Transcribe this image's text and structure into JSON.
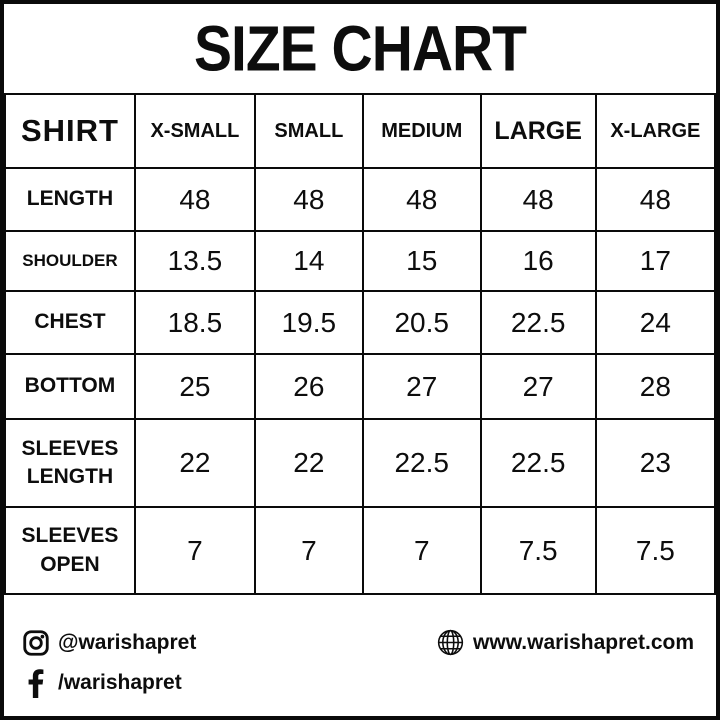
{
  "chart_data": {
    "type": "table",
    "title": "SIZE CHART",
    "corner_label": "SHIRT",
    "columns": [
      "X-SMALL",
      "SMALL",
      "MEDIUM",
      "LARGE",
      "X-LARGE"
    ],
    "rows": [
      {
        "label": "LENGTH",
        "values": [
          "48",
          "48",
          "48",
          "48",
          "48"
        ]
      },
      {
        "label": "SHOULDER",
        "values": [
          "13.5",
          "14",
          "15",
          "16",
          "17"
        ]
      },
      {
        "label": "CHEST",
        "values": [
          "18.5",
          "19.5",
          "20.5",
          "22.5",
          "24"
        ]
      },
      {
        "label": "BOTTOM",
        "values": [
          "25",
          "26",
          "27",
          "27",
          "28"
        ]
      },
      {
        "label": "SLEEVES LENGTH",
        "values": [
          "22",
          "22",
          "22.5",
          "22.5",
          "23"
        ]
      },
      {
        "label": "SLEEVES OPEN",
        "values": [
          "7",
          "7",
          "7",
          "7.5",
          "7.5"
        ]
      }
    ]
  },
  "footer": {
    "instagram_handle": "@warishapret",
    "facebook_handle": "/warishapret",
    "website": "www.warishapret.com",
    "icons": {
      "instagram": "instagram-icon",
      "facebook": "facebook-icon",
      "website": "globe-icon"
    }
  },
  "colors": {
    "ink": "#0d0d0d",
    "background": "#ffffff",
    "border": "#0a0a0a"
  }
}
